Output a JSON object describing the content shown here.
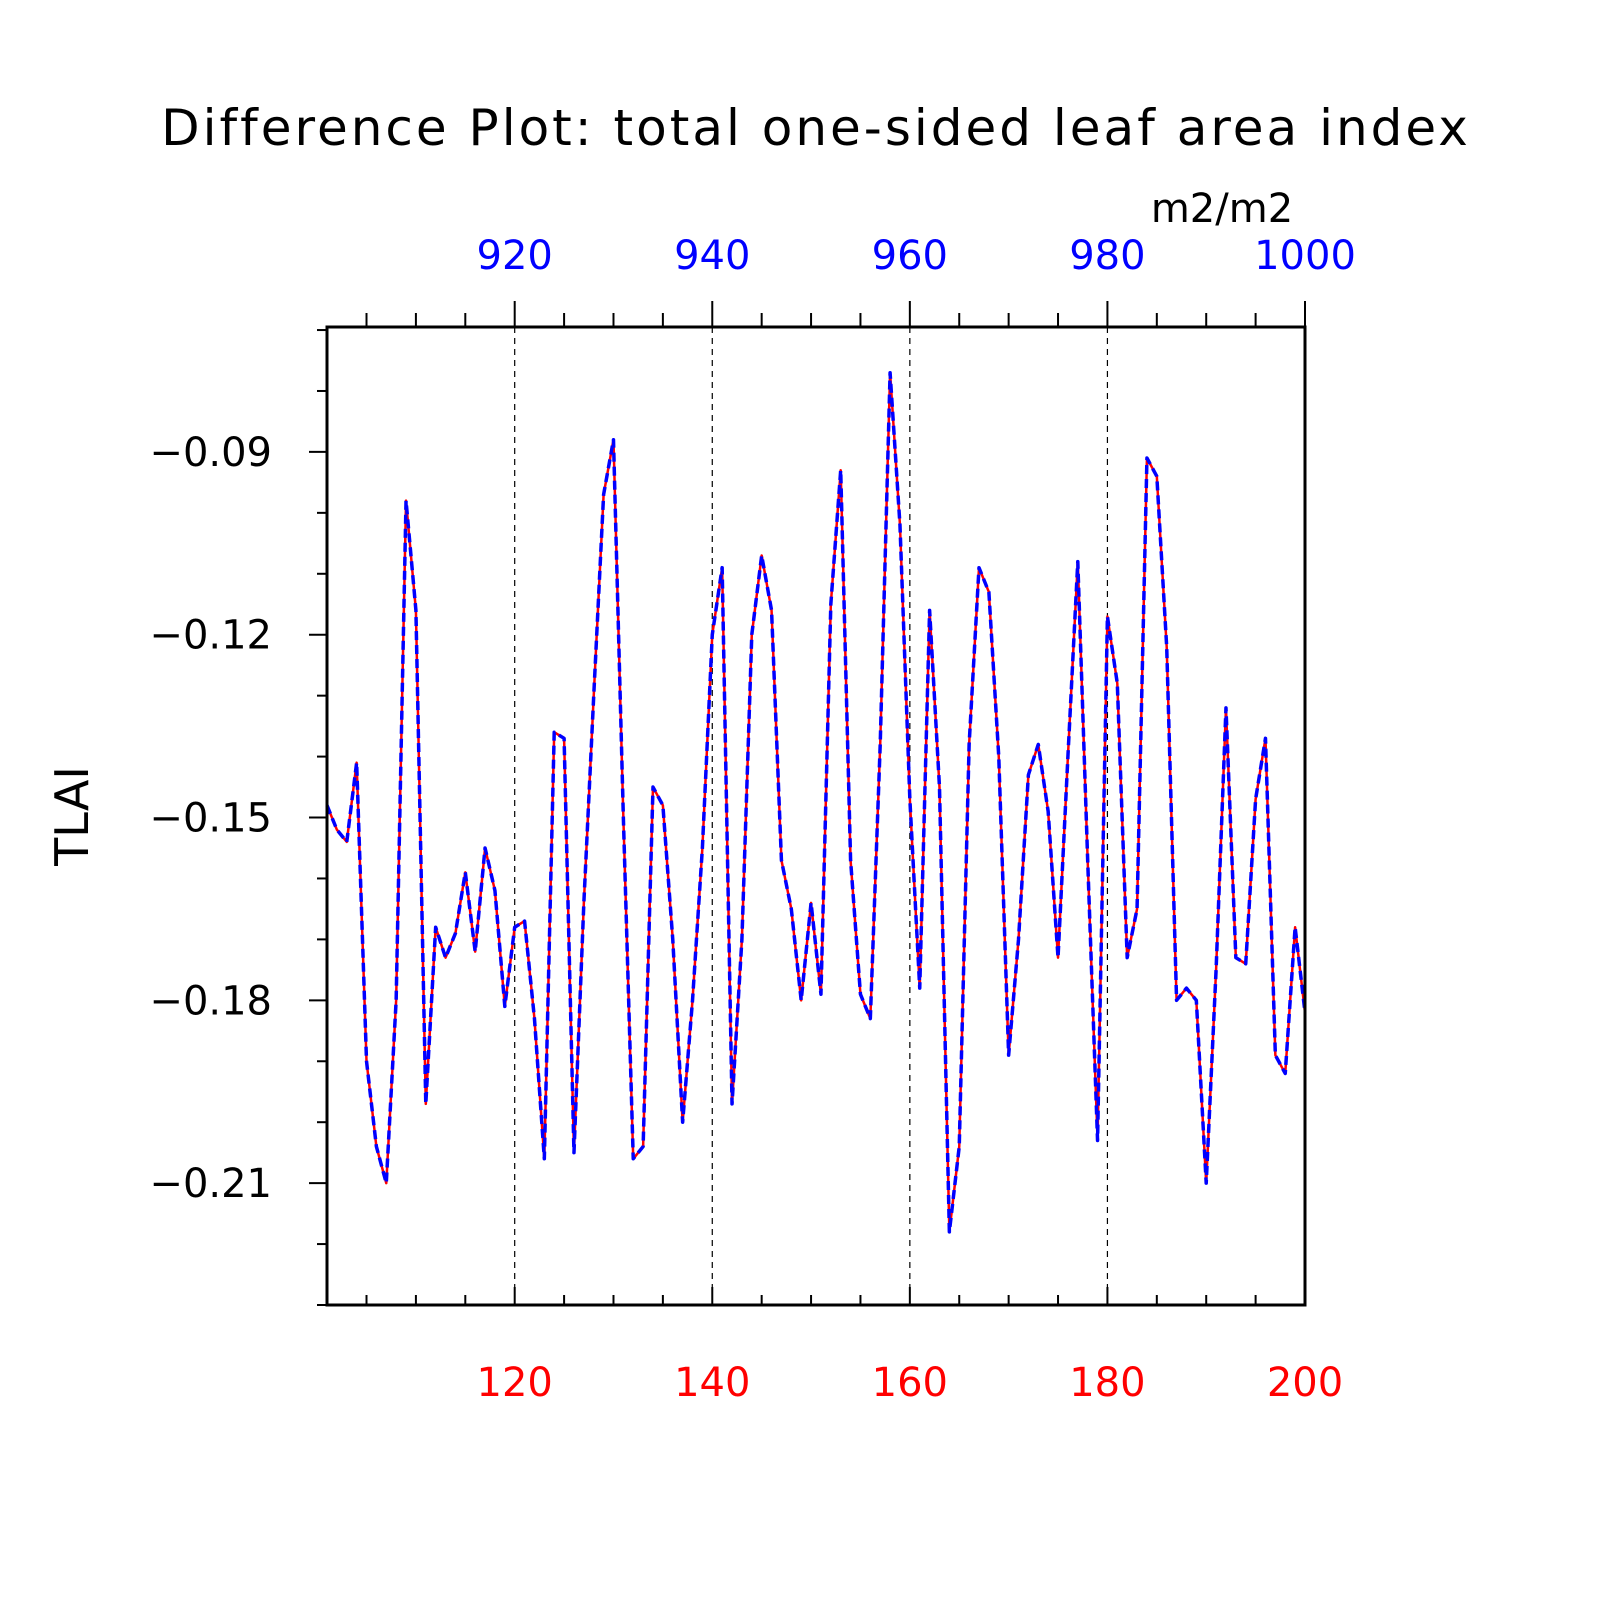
{
  "chart_data": {
    "type": "line",
    "title": "Difference Plot: total one-sided leaf area index",
    "units_label": "m2/m2",
    "ylabel": "TLAI",
    "xlabel": "",
    "xlim": [
      101,
      200
    ],
    "ylim": [
      -0.23,
      -0.0695
    ],
    "top_axis": {
      "range": [
        901,
        1000
      ],
      "ticks": [
        920,
        940,
        960,
        980,
        1000
      ],
      "tick_labels": [
        "920",
        "940",
        "960",
        "980",
        "1000"
      ],
      "color": "#0000ff"
    },
    "bottom_axis": {
      "ticks": [
        120,
        140,
        160,
        180,
        200
      ],
      "tick_labels": [
        "120",
        "140",
        "160",
        "180",
        "200"
      ],
      "color": "#ff0000"
    },
    "y_ticks": [
      -0.09,
      -0.12,
      -0.15,
      -0.18,
      -0.21
    ],
    "y_tick_labels": [
      "−0.09",
      "−0.12",
      "−0.15",
      "−0.18",
      "−0.21"
    ],
    "grid": "vertical dashed lines at major x ticks",
    "series": [
      {
        "color": "#ff0000",
        "dash": "solid",
        "x": [
          101,
          102,
          103,
          104,
          105,
          106,
          107,
          108,
          109,
          110,
          111,
          112,
          113,
          114,
          115,
          116,
          117,
          118,
          119,
          120,
          121,
          122,
          123,
          124,
          125,
          126,
          127,
          128,
          129,
          130,
          131,
          132,
          133,
          134,
          135,
          136,
          137,
          138,
          139,
          140,
          141,
          142,
          143,
          144,
          145,
          146,
          147,
          148,
          149,
          150,
          151,
          152,
          153,
          154,
          155,
          156,
          157,
          158,
          159,
          160,
          161,
          162,
          163,
          164,
          165,
          166,
          167,
          168,
          169,
          170,
          171,
          172,
          173,
          174,
          175,
          176,
          177,
          178,
          179,
          180,
          181,
          182,
          183,
          184,
          185,
          186,
          187,
          188,
          189,
          190,
          191,
          192,
          193,
          194,
          195,
          196,
          197,
          198,
          199,
          200
        ],
        "y": [
          -0.148,
          -0.152,
          -0.154,
          -0.141,
          -0.19,
          -0.204,
          -0.21,
          -0.18,
          -0.098,
          -0.116,
          -0.197,
          -0.168,
          -0.173,
          -0.169,
          -0.159,
          -0.172,
          -0.155,
          -0.162,
          -0.181,
          -0.168,
          -0.167,
          -0.183,
          -0.206,
          -0.136,
          -0.137,
          -0.205,
          -0.164,
          -0.13,
          -0.097,
          -0.088,
          -0.15,
          -0.206,
          -0.204,
          -0.145,
          -0.148,
          -0.17,
          -0.2,
          -0.18,
          -0.155,
          -0.12,
          -0.109,
          -0.197,
          -0.17,
          -0.12,
          -0.107,
          -0.116,
          -0.157,
          -0.165,
          -0.18,
          -0.164,
          -0.179,
          -0.115,
          -0.093,
          -0.157,
          -0.179,
          -0.183,
          -0.138,
          -0.077,
          -0.102,
          -0.147,
          -0.178,
          -0.116,
          -0.145,
          -0.218,
          -0.204,
          -0.138,
          -0.109,
          -0.113,
          -0.14,
          -0.189,
          -0.17,
          -0.143,
          -0.138,
          -0.149,
          -0.173,
          -0.14,
          -0.108,
          -0.157,
          -0.203,
          -0.117,
          -0.128,
          -0.173,
          -0.165,
          -0.091,
          -0.094,
          -0.122,
          -0.18,
          -0.178,
          -0.18,
          -0.21,
          -0.175,
          -0.132,
          -0.173,
          -0.174,
          -0.147,
          -0.137,
          -0.189,
          -0.192,
          -0.168,
          -0.182
        ]
      },
      {
        "color": "#0000ff",
        "dash": "dashed",
        "x": [
          101,
          102,
          103,
          104,
          105,
          106,
          107,
          108,
          109,
          110,
          111,
          112,
          113,
          114,
          115,
          116,
          117,
          118,
          119,
          120,
          121,
          122,
          123,
          124,
          125,
          126,
          127,
          128,
          129,
          130,
          131,
          132,
          133,
          134,
          135,
          136,
          137,
          138,
          139,
          140,
          141,
          142,
          143,
          144,
          145,
          146,
          147,
          148,
          149,
          150,
          151,
          152,
          153,
          154,
          155,
          156,
          157,
          158,
          159,
          160,
          161,
          162,
          163,
          164,
          165,
          166,
          167,
          168,
          169,
          170,
          171,
          172,
          173,
          174,
          175,
          176,
          177,
          178,
          179,
          180,
          181,
          182,
          183,
          184,
          185,
          186,
          187,
          188,
          189,
          190,
          191,
          192,
          193,
          194,
          195,
          196,
          197,
          198,
          199,
          200
        ],
        "y": [
          -0.148,
          -0.152,
          -0.154,
          -0.141,
          -0.19,
          -0.204,
          -0.21,
          -0.18,
          -0.098,
          -0.116,
          -0.197,
          -0.168,
          -0.173,
          -0.169,
          -0.159,
          -0.172,
          -0.155,
          -0.162,
          -0.181,
          -0.168,
          -0.167,
          -0.183,
          -0.206,
          -0.136,
          -0.137,
          -0.205,
          -0.164,
          -0.13,
          -0.097,
          -0.088,
          -0.15,
          -0.206,
          -0.204,
          -0.145,
          -0.148,
          -0.17,
          -0.2,
          -0.18,
          -0.155,
          -0.12,
          -0.109,
          -0.197,
          -0.17,
          -0.12,
          -0.107,
          -0.116,
          -0.157,
          -0.165,
          -0.18,
          -0.164,
          -0.179,
          -0.115,
          -0.093,
          -0.157,
          -0.179,
          -0.183,
          -0.138,
          -0.077,
          -0.102,
          -0.147,
          -0.178,
          -0.116,
          -0.145,
          -0.218,
          -0.204,
          -0.138,
          -0.109,
          -0.113,
          -0.14,
          -0.189,
          -0.17,
          -0.143,
          -0.138,
          -0.149,
          -0.173,
          -0.14,
          -0.108,
          -0.157,
          -0.203,
          -0.117,
          -0.128,
          -0.173,
          -0.165,
          -0.091,
          -0.094,
          -0.122,
          -0.18,
          -0.178,
          -0.18,
          -0.21,
          -0.175,
          -0.132,
          -0.173,
          -0.174,
          -0.147,
          -0.137,
          -0.189,
          -0.192,
          -0.168,
          -0.182
        ]
      }
    ]
  }
}
